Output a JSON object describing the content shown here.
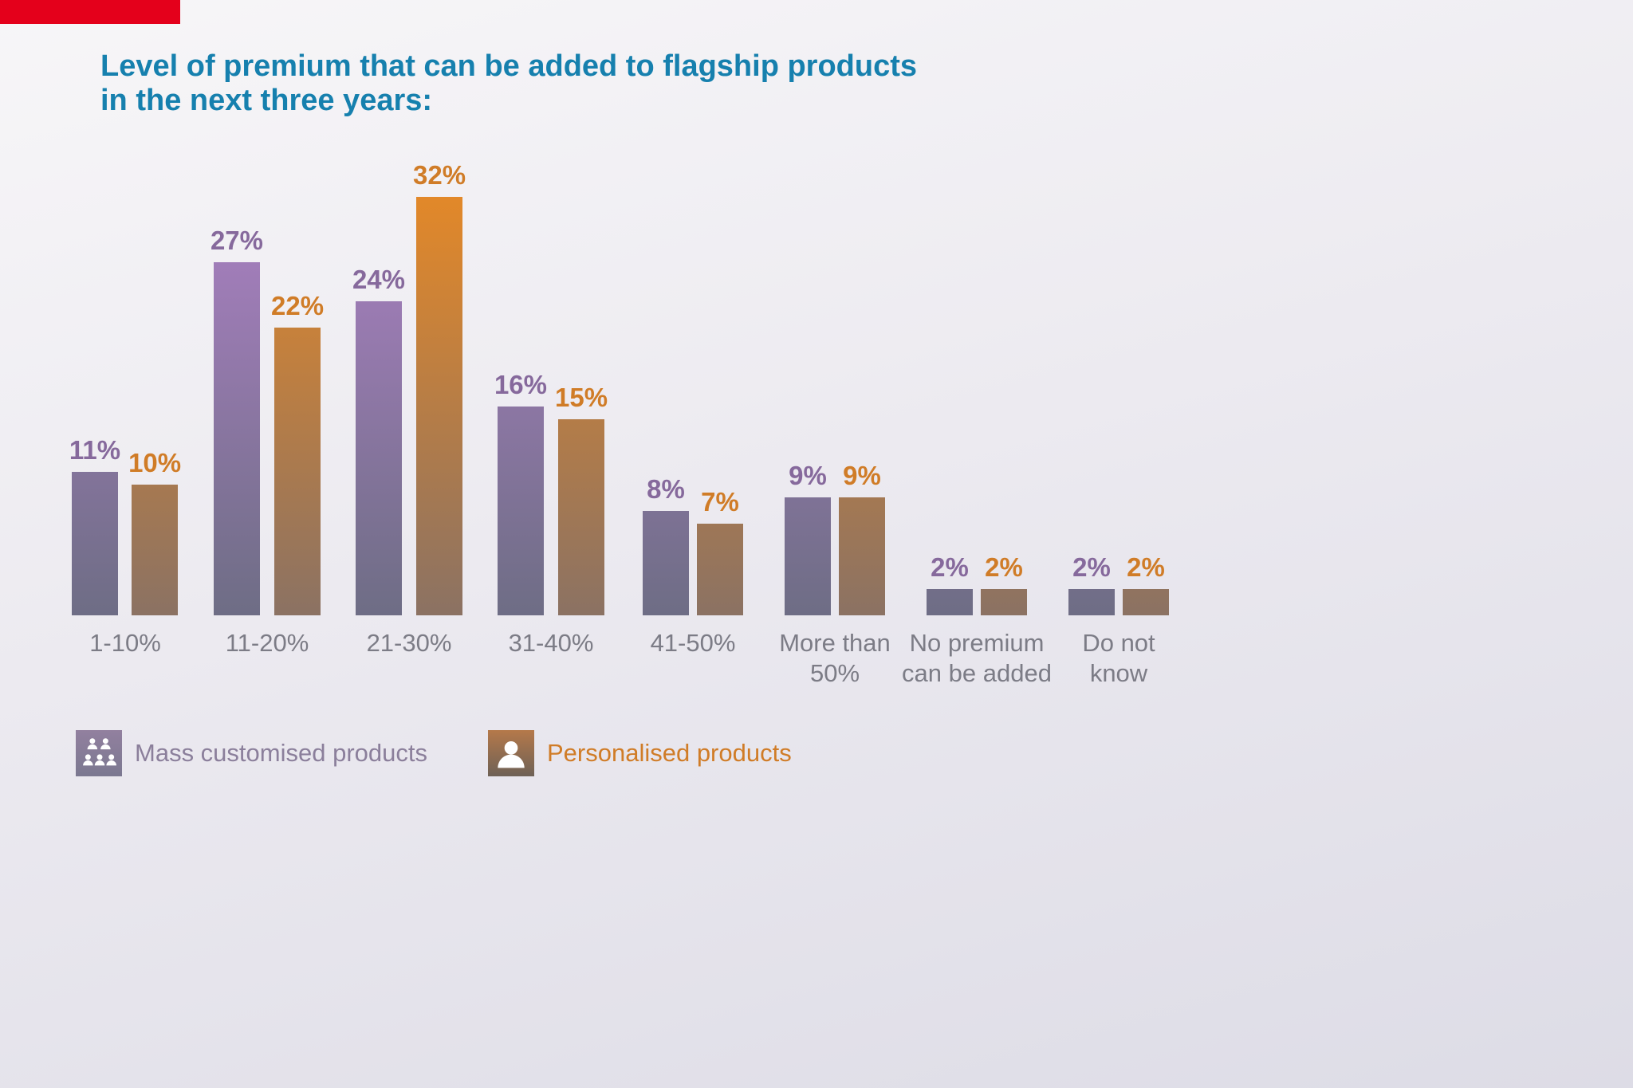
{
  "banner": {
    "color": "#e4001b"
  },
  "title": {
    "line1": "Level of premium that can be added to flagship products",
    "line2": "in the next three years:",
    "color": "#1680ae"
  },
  "chart_data": {
    "type": "bar",
    "title": "Level of premium that can be added to flagship products in the next three years:",
    "categories": [
      "1-10%",
      "11-20%",
      "21-30%",
      "31-40%",
      "41-50%",
      "More than\n50%",
      "No premium\ncan be added",
      "Do not\nknow"
    ],
    "series": [
      {
        "name": "Mass customised products",
        "values": [
          11,
          27,
          24,
          16,
          8,
          9,
          2,
          2
        ],
        "color": "#8f7ba6",
        "label_color": "#86699c"
      },
      {
        "name": "Personalised products",
        "values": [
          10,
          22,
          32,
          15,
          7,
          9,
          2,
          2
        ],
        "color": "#d28136",
        "label_color": "#d07c27"
      }
    ],
    "value_suffix": "%",
    "ylim": [
      0,
      32
    ],
    "grid": false,
    "legend_position": "bottom"
  },
  "legend": {
    "items": [
      {
        "label": "Mass customised products",
        "icon": "group-of-people-icon",
        "color": "#8b7f9b"
      },
      {
        "label": "Personalised products",
        "icon": "single-person-icon",
        "color": "#d07c27"
      }
    ]
  }
}
